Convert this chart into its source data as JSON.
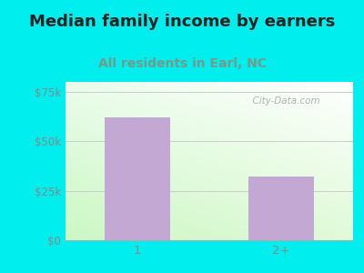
{
  "title": "Median family income by earners",
  "subtitle": "All residents in Earl, NC",
  "categories": [
    "1",
    "2+"
  ],
  "values": [
    62000,
    32000
  ],
  "bar_color": "#c4a8d4",
  "bar_width": 0.45,
  "ylim": [
    0,
    80000
  ],
  "yticks": [
    0,
    25000,
    50000,
    75000
  ],
  "ytick_labels": [
    "$0",
    "$25k",
    "$50k",
    "$75k"
  ],
  "title_fontsize": 13,
  "subtitle_fontsize": 10,
  "subtitle_color": "#779988",
  "title_color": "#222222",
  "outer_bg": "#00eeee",
  "grid_color": "#cccccc",
  "tick_label_color": "#888888",
  "watermark_text": "  City-Data.com",
  "watermark_color": "#aaaaaa"
}
